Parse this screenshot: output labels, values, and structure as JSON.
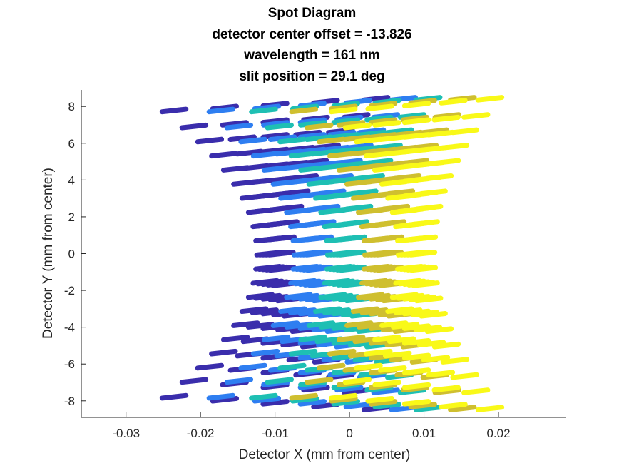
{
  "chart_data": {
    "type": "scatter",
    "title": [
      "Spot Diagram",
      "detector center offset = -13.826",
      "wavelength = 161 nm",
      "slit position = 29.1 deg"
    ],
    "xlabel": "Detector X (mm from center)",
    "ylabel": "Detector Y (mm from center)",
    "xlim": [
      -0.036,
      0.029
    ],
    "ylim": [
      -8.9,
      8.9
    ],
    "xticks": [
      -0.03,
      -0.02,
      -0.01,
      0,
      0.01,
      0.02
    ],
    "xtick_labels": [
      "-0.03",
      "-0.02",
      "-0.01",
      "0",
      "0.01",
      "0.02"
    ],
    "yticks": [
      -8,
      -6,
      -4,
      -2,
      0,
      2,
      4,
      6,
      8
    ],
    "ytick_labels": [
      "-8",
      "-6",
      "-4",
      "-2",
      "0",
      "2",
      "4",
      "6",
      "8"
    ],
    "grid": false,
    "series": [
      {
        "color": "#3a2dac",
        "center_x": -0.01,
        "spread_x": 0.0127,
        "min_half_width": 0.00085
      },
      {
        "color": "#2e7ef1",
        "center_x": -0.005,
        "spread_x": 0.0114,
        "min_half_width": 0.00085
      },
      {
        "color": "#1ebfb3",
        "center_x": -0.0005,
        "spread_x": 0.0102,
        "min_half_width": 0.00085
      },
      {
        "color": "#cfbf2f",
        "center_x": 0.0045,
        "spread_x": 0.0098,
        "min_half_width": 0.00085
      },
      {
        "color": "#f9f918",
        "center_x": 0.009,
        "spread_x": 0.009,
        "min_half_width": 0.00085
      }
    ],
    "rows_y": [
      -8.1,
      -7.2,
      -6.4,
      -5.6,
      -4.8,
      -4.0,
      -3.2,
      -2.4,
      -1.6,
      -0.8,
      0.0,
      0.8,
      1.6,
      2.4,
      3.2,
      4.0,
      4.8,
      5.6,
      6.4,
      7.2,
      8.1
    ],
    "dashes_per_row": 5
  }
}
